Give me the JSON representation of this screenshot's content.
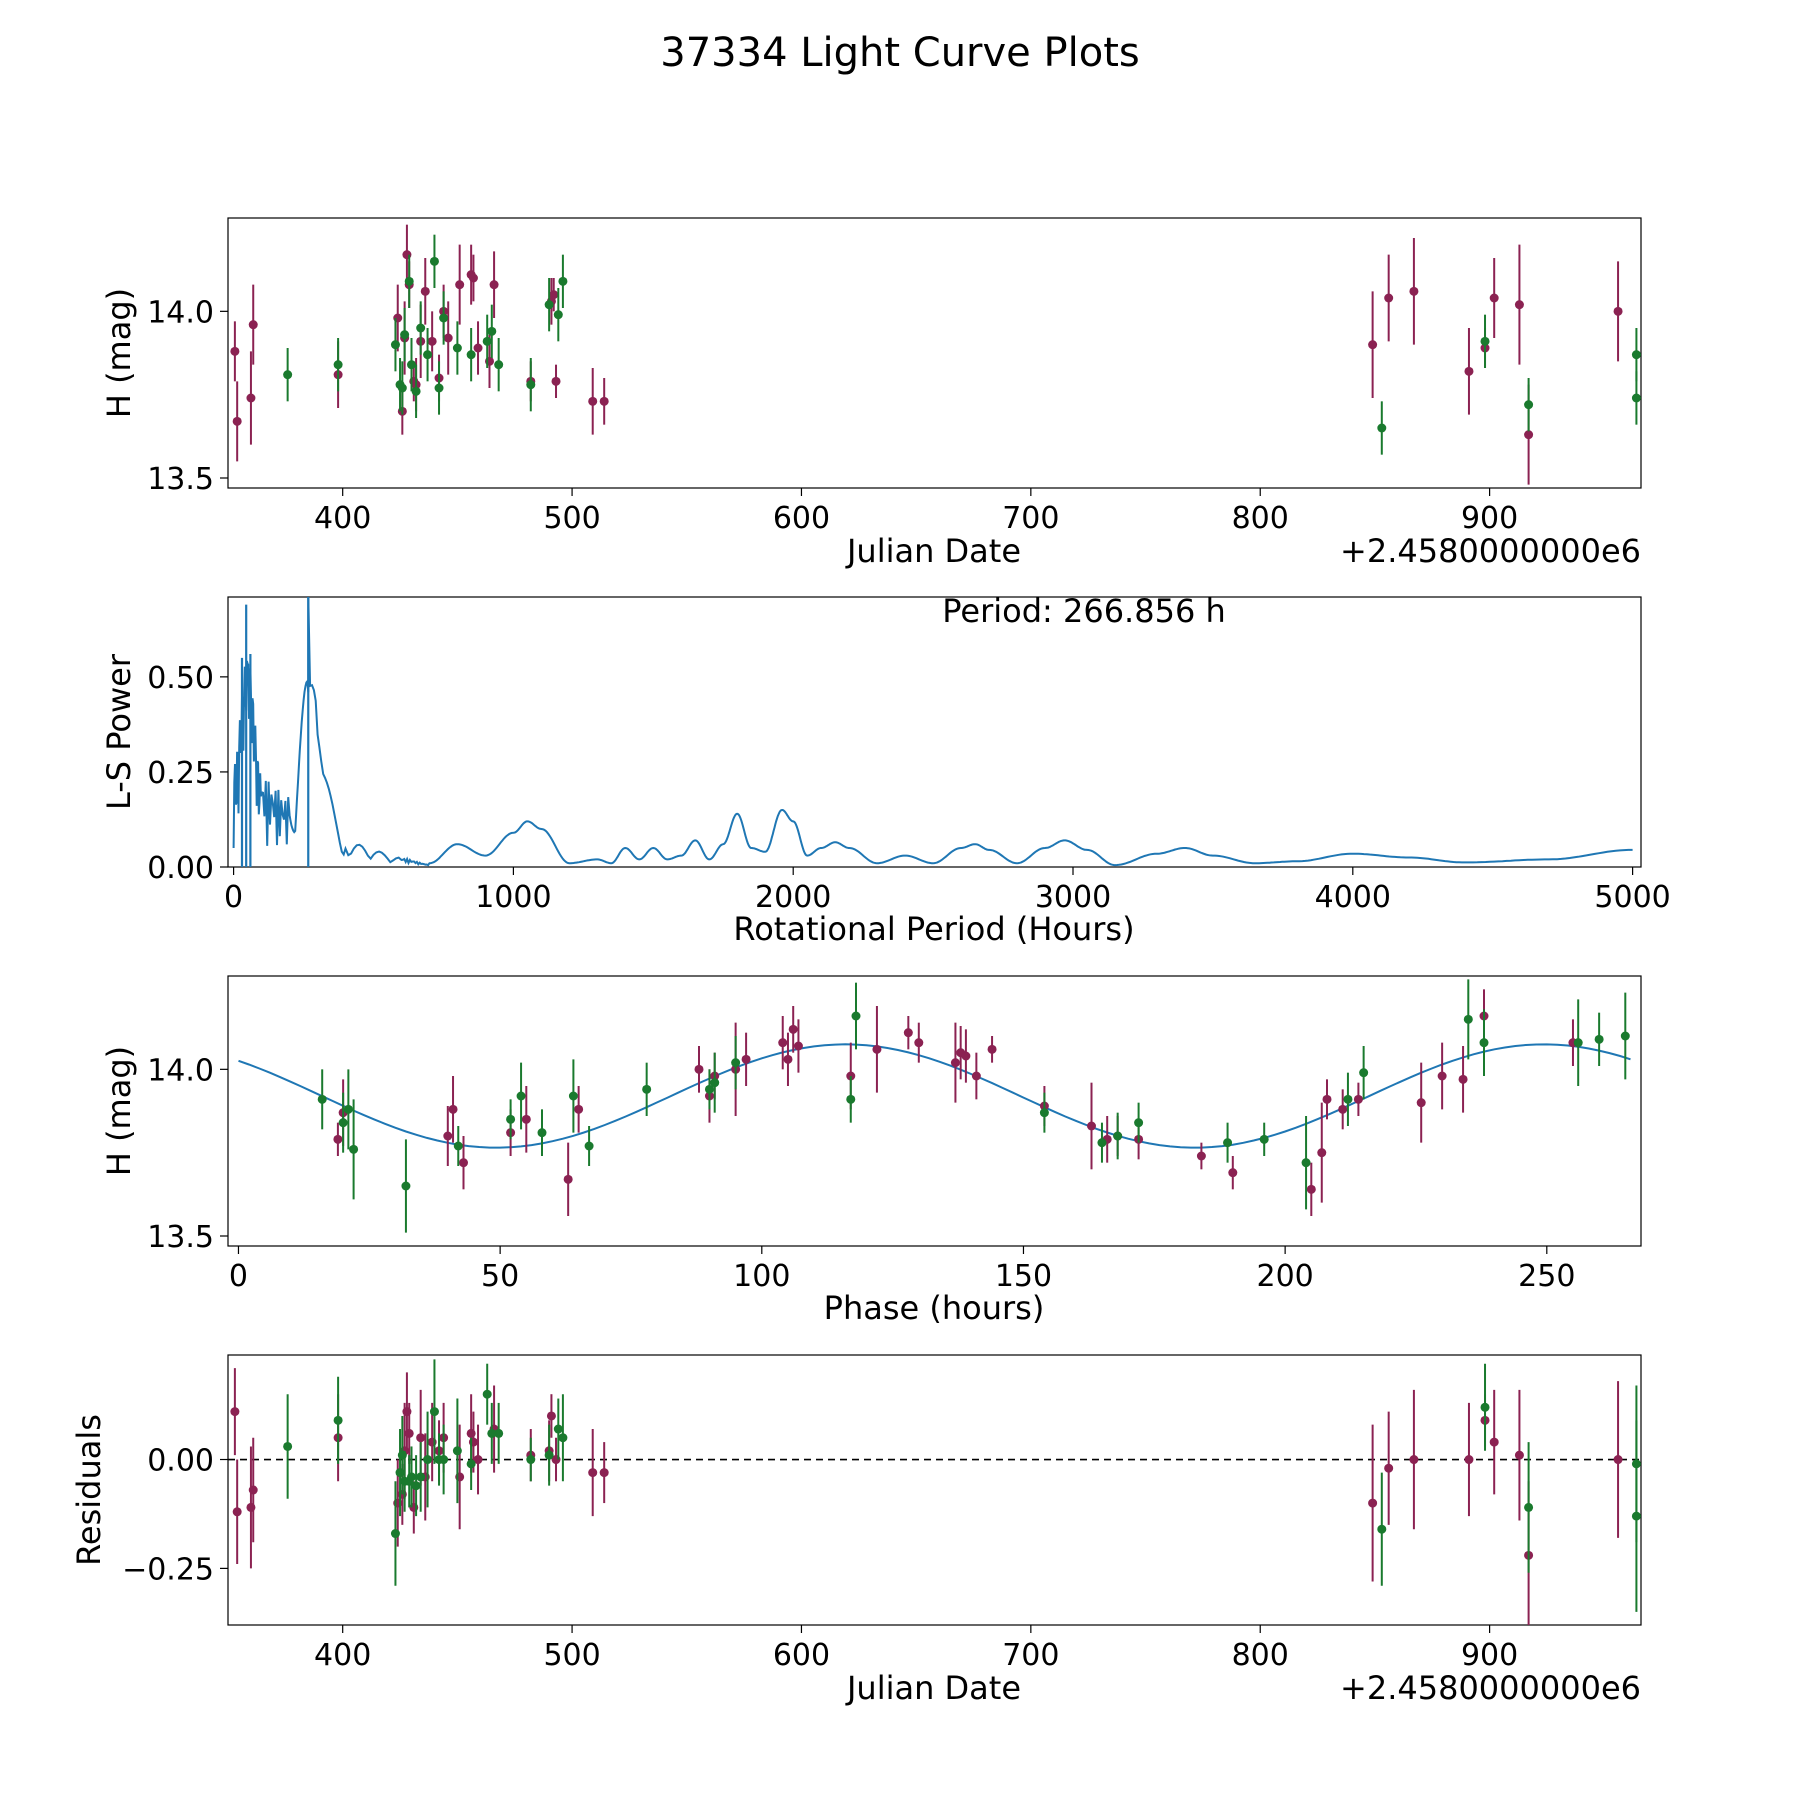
{
  "figure": {
    "title": "37334 Light Curve Plots"
  },
  "colors": {
    "purple": "#8b2252",
    "green": "#1a7a2e",
    "line": "#1f77b4",
    "axis": "#000000"
  },
  "chart_data": [
    {
      "type": "scatter",
      "id": "lightcurve",
      "xlabel": "Julian Date",
      "ylabel": "H (mag)",
      "offset_label": "+2.4580000000e6",
      "xlim": [
        350,
        966
      ],
      "ylim": [
        13.47,
        14.28
      ],
      "xticks": [
        400,
        500,
        600,
        700,
        800,
        900
      ],
      "yticks": [
        13.5,
        14.0
      ],
      "ytick_labels": [
        "13.5",
        "14.0"
      ],
      "series": [
        {
          "name": "filter-purple",
          "color": "purple",
          "x": [
            353,
            354,
            360,
            361,
            398,
            424,
            426,
            427,
            428,
            429,
            431,
            432,
            434,
            436,
            439,
            442,
            444,
            446,
            451,
            456,
            457,
            459,
            464,
            466,
            482,
            491,
            492,
            493,
            509,
            514,
            849,
            856,
            867,
            891,
            898,
            902,
            913,
            917,
            956
          ],
          "y": [
            13.88,
            13.67,
            13.74,
            13.96,
            13.81,
            13.98,
            13.7,
            13.92,
            14.17,
            14.08,
            13.79,
            13.78,
            13.91,
            14.06,
            13.91,
            13.8,
            14.0,
            13.92,
            14.08,
            14.11,
            14.1,
            13.89,
            13.85,
            14.08,
            13.79,
            14.03,
            14.05,
            13.79,
            13.73,
            13.73,
            13.9,
            14.04,
            14.06,
            13.82,
            13.89,
            14.04,
            14.02,
            13.63,
            14.0
          ],
          "err": [
            0.09,
            0.12,
            0.14,
            0.12,
            0.1,
            0.1,
            0.07,
            0.11,
            0.09,
            0.07,
            0.06,
            0.08,
            0.11,
            0.1,
            0.09,
            0.07,
            0.08,
            0.11,
            0.12,
            0.09,
            0.07,
            0.08,
            0.08,
            0.1,
            0.06,
            0.07,
            0.05,
            0.05,
            0.1,
            0.07,
            0.16,
            0.13,
            0.16,
            0.13,
            0.06,
            0.12,
            0.18,
            0.15,
            0.15
          ]
        },
        {
          "name": "filter-green",
          "color": "green",
          "x": [
            376,
            398,
            423,
            425,
            426,
            427,
            429,
            430,
            432,
            434,
            437,
            440,
            442,
            444,
            450,
            456,
            463,
            465,
            468,
            482,
            490,
            494,
            496,
            853,
            898,
            917,
            964,
            964
          ],
          "y": [
            13.81,
            13.84,
            13.9,
            13.78,
            13.77,
            13.93,
            14.09,
            13.84,
            13.76,
            13.95,
            13.87,
            14.15,
            13.77,
            13.98,
            13.89,
            13.87,
            13.91,
            13.94,
            13.84,
            13.78,
            14.02,
            13.99,
            14.09,
            13.65,
            13.91,
            13.72,
            13.87,
            13.74
          ]
        }
      ]
    },
    {
      "type": "line",
      "id": "periodogram",
      "xlabel": "Rotational Period (Hours)",
      "ylabel": "L-S Power",
      "annotation": "Period: 266.856 h",
      "xlim": [
        -20,
        5030
      ],
      "ylim": [
        0,
        0.71
      ],
      "xticks": [
        0,
        1000,
        2000,
        3000,
        4000,
        5000
      ],
      "yticks": [
        0,
        0.25,
        0.5
      ],
      "ytick_labels": [
        "0.00",
        "0.25",
        "0.50"
      ],
      "x": [
        0,
        50,
        100,
        200,
        266.856,
        400,
        600,
        700,
        800,
        900,
        1000,
        1050,
        1100,
        1200,
        1300,
        1350,
        1400,
        1450,
        1500,
        1550,
        1600,
        1650,
        1700,
        1750,
        1800,
        1850,
        1900,
        1960,
        2000,
        2050,
        2100,
        2150,
        2200,
        2300,
        2400,
        2500,
        2600,
        2650,
        2700,
        2800,
        2900,
        2970,
        3050,
        3150,
        3300,
        3400,
        3500,
        3650,
        3800,
        4000,
        4200,
        4400,
        4700,
        5000
      ],
      "y": [
        0.1,
        0.7,
        0.1,
        0.05,
        0.71,
        0.05,
        0.02,
        0.01,
        0.06,
        0.03,
        0.09,
        0.12,
        0.1,
        0.01,
        0.02,
        0.01,
        0.05,
        0.02,
        0.05,
        0.02,
        0.03,
        0.07,
        0.02,
        0.06,
        0.14,
        0.05,
        0.04,
        0.15,
        0.12,
        0.03,
        0.05,
        0.065,
        0.05,
        0.01,
        0.03,
        0.01,
        0.05,
        0.06,
        0.045,
        0.01,
        0.05,
        0.07,
        0.045,
        0.005,
        0.035,
        0.05,
        0.03,
        0.01,
        0.015,
        0.035,
        0.025,
        0.012,
        0.02,
        0.045
      ]
    },
    {
      "type": "scatter",
      "id": "phase",
      "xlabel": "Phase (hours)",
      "ylabel": "H (mag)",
      "xlim": [
        -2,
        268
      ],
      "ylim": [
        13.47,
        14.28
      ],
      "xticks": [
        0,
        50,
        100,
        150,
        200,
        250
      ],
      "yticks": [
        13.5,
        14.0
      ],
      "ytick_labels": [
        "13.5",
        "14.0"
      ],
      "model": {
        "mean": 13.92,
        "amplitude": 0.155,
        "peak_phase": 116,
        "period": 266.856
      },
      "series": [
        {
          "name": "phase-purple",
          "color": "purple",
          "x": [
            19,
            20,
            40,
            41,
            43,
            52,
            55,
            63,
            65,
            88,
            90,
            91,
            95,
            97,
            104,
            105,
            106,
            107,
            117,
            122,
            128,
            130,
            137,
            138,
            139,
            141,
            144,
            154,
            163,
            166,
            168,
            172,
            184,
            190,
            205,
            207,
            208,
            211,
            214,
            226,
            230,
            234,
            238,
            255
          ],
          "y": [
            13.79,
            13.87,
            13.8,
            13.88,
            13.72,
            13.81,
            13.85,
            13.67,
            13.88,
            14.0,
            13.92,
            13.98,
            14.0,
            14.03,
            14.08,
            14.03,
            14.12,
            14.07,
            13.98,
            14.06,
            14.11,
            14.08,
            14.02,
            14.05,
            14.04,
            13.98,
            14.06,
            13.89,
            13.83,
            13.79,
            13.8,
            13.79,
            13.74,
            13.69,
            13.64,
            13.75,
            13.91,
            13.88,
            13.91,
            13.9,
            13.98,
            13.97,
            14.16,
            14.08
          ],
          "err": [
            0.05,
            0.1,
            0.09,
            0.1,
            0.08,
            0.07,
            0.1,
            0.11,
            0.07,
            0.07,
            0.08,
            0.07,
            0.14,
            0.08,
            0.08,
            0.08,
            0.07,
            0.08,
            0.1,
            0.13,
            0.05,
            0.06,
            0.12,
            0.08,
            0.08,
            0.07,
            0.04,
            0.06,
            0.13,
            0.07,
            0.06,
            0.06,
            0.04,
            0.05,
            0.08,
            0.15,
            0.06,
            0.06,
            0.05,
            0.12,
            0.1,
            0.1,
            0.08,
            0.07
          ]
        },
        {
          "name": "phase-green",
          "color": "green",
          "x": [
            16,
            20,
            21,
            22,
            32,
            42,
            52,
            54,
            58,
            64,
            67,
            78,
            90,
            91,
            95,
            117,
            118,
            154,
            165,
            168,
            172,
            189,
            196,
            204,
            212,
            215,
            235,
            238,
            256,
            260,
            265
          ],
          "y": [
            13.91,
            13.84,
            13.88,
            13.76,
            13.65,
            13.77,
            13.85,
            13.92,
            13.81,
            13.92,
            13.77,
            13.94,
            13.94,
            13.96,
            14.02,
            13.91,
            14.16,
            13.87,
            13.78,
            13.8,
            13.84,
            13.78,
            13.79,
            13.72,
            13.91,
            13.99,
            14.15,
            14.08,
            14.08,
            14.09,
            14.1
          ],
          "err": [
            0.09,
            0.09,
            0.12,
            0.15,
            0.14,
            0.06,
            0.06,
            0.1,
            0.07,
            0.11,
            0.06,
            0.08,
            0.06,
            0.09,
            0.08,
            0.07,
            0.1,
            0.06,
            0.06,
            0.07,
            0.06,
            0.06,
            0.05,
            0.14,
            0.08,
            0.08,
            0.12,
            0.1,
            0.13,
            0.08,
            0.13
          ]
        }
      ]
    },
    {
      "type": "scatter",
      "id": "residuals",
      "xlabel": "Julian Date",
      "ylabel": "Residuals",
      "offset_label": "+2.4580000000e6",
      "xlim": [
        350,
        966
      ],
      "ylim": [
        -0.38,
        0.24
      ],
      "xticks": [
        400,
        500,
        600,
        700,
        800,
        900
      ],
      "yticks": [
        -0.25,
        0.0
      ],
      "ytick_labels": [
        "−0.25",
        "0.00"
      ],
      "zero_line": true,
      "series": [
        {
          "name": "resid-purple",
          "color": "purple",
          "x": [
            353,
            354,
            360,
            361,
            398,
            424,
            426,
            427,
            428,
            429,
            431,
            434,
            436,
            439,
            442,
            444,
            451,
            456,
            457,
            459,
            466,
            482,
            490,
            491,
            493,
            509,
            514,
            849,
            856,
            867,
            891,
            898,
            902,
            913,
            917,
            956
          ],
          "y": [
            0.11,
            -0.12,
            -0.11,
            -0.07,
            0.05,
            -0.1,
            -0.08,
            0.02,
            0.11,
            0.06,
            -0.11,
            0.05,
            -0.04,
            0.04,
            0.02,
            0.05,
            -0.04,
            0.06,
            0.04,
            0.0,
            0.07,
            0.01,
            0.02,
            0.1,
            0.0,
            -0.03,
            -0.03,
            -0.1,
            -0.02,
            0.0,
            0.0,
            0.09,
            0.04,
            0.01,
            -0.22,
            0.0
          ],
          "err": [
            0.1,
            0.12,
            0.14,
            0.12,
            0.1,
            0.1,
            0.07,
            0.11,
            0.09,
            0.07,
            0.06,
            0.11,
            0.1,
            0.09,
            0.07,
            0.08,
            0.12,
            0.09,
            0.07,
            0.08,
            0.1,
            0.06,
            0.07,
            0.05,
            0.05,
            0.1,
            0.07,
            0.18,
            0.13,
            0.16,
            0.13,
            0.06,
            0.12,
            0.15,
            0.17,
            0.18
          ]
        },
        {
          "name": "resid-green",
          "color": "green",
          "x": [
            376,
            398,
            423,
            425,
            426,
            427,
            429,
            430,
            432,
            434,
            437,
            440,
            442,
            444,
            450,
            456,
            463,
            465,
            468,
            482,
            490,
            494,
            496,
            853,
            898,
            917,
            964,
            964
          ],
          "y": [
            0.03,
            0.09,
            -0.17,
            -0.03,
            0.01,
            -0.05,
            -0.05,
            -0.04,
            -0.06,
            -0.04,
            0.0,
            0.11,
            0.0,
            0.0,
            0.02,
            -0.01,
            0.15,
            0.06,
            0.06,
            0.0,
            0.01,
            0.07,
            0.05,
            -0.16,
            0.12,
            -0.11,
            -0.01,
            -0.13
          ],
          "err": [
            0.12,
            0.1,
            0.12,
            0.1,
            0.09,
            0.07,
            0.06,
            0.07,
            0.07,
            0.08,
            0.11,
            0.12,
            0.06,
            0.08,
            0.12,
            0.06,
            0.07,
            0.07,
            0.07,
            0.05,
            0.07,
            0.07,
            0.1,
            0.13,
            0.1,
            0.15,
            0.18,
            0.22
          ]
        }
      ]
    }
  ]
}
